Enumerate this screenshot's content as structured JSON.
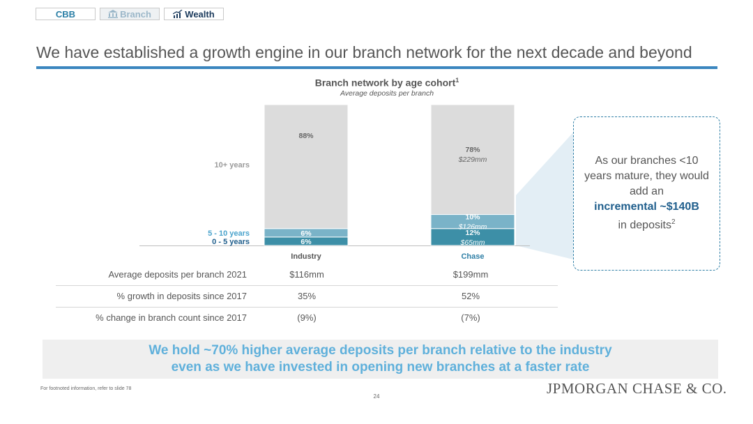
{
  "tabs": [
    {
      "label": "CBB",
      "icon": null
    },
    {
      "label": "Branch",
      "icon": "bank-icon"
    },
    {
      "label": "Wealth",
      "icon": "growth-chart-icon"
    }
  ],
  "title": "We have established a growth engine in our branch network for the next decade and beyond",
  "chart_data": {
    "type": "bar",
    "stacked": true,
    "title": "Branch network by age cohort",
    "title_superscript": "1",
    "subtitle": "Average deposits per branch",
    "categories": [
      "Industry",
      "Chase"
    ],
    "series": [
      {
        "name": "0 - 5 years",
        "color": "#3d8fa7",
        "text_color": "#1f5e8c",
        "values": [
          6,
          12
        ],
        "labels": [
          "6%",
          "12%"
        ],
        "sub_labels": [
          "",
          "$65mm"
        ]
      },
      {
        "name": "5 - 10 years",
        "color": "#7ab3c8",
        "text_color": "#4aa3cc",
        "values": [
          6,
          10
        ],
        "labels": [
          "6%",
          "10%"
        ],
        "sub_labels": [
          "",
          "$126mm"
        ]
      },
      {
        "name": "10+ years",
        "color": "#dcdcdc",
        "text_color": "#9a9a9a",
        "values": [
          88,
          78
        ],
        "labels": [
          "88%",
          "78%"
        ],
        "sub_labels": [
          "",
          "$229mm"
        ]
      }
    ],
    "ylim": [
      0,
      100
    ]
  },
  "callout": {
    "line1": "As our branches <10",
    "line2": "years mature, they would",
    "line3": "add an",
    "line4": "incremental ~$140B",
    "line5": "in deposits",
    "sup": "2"
  },
  "table": {
    "rows": [
      {
        "label": "Average deposits per branch 2021",
        "industry": "$116mm",
        "chase": "$199mm"
      },
      {
        "label": "% growth in deposits since 2017",
        "industry": "35%",
        "chase": "52%"
      },
      {
        "label": "% change in branch count since 2017",
        "industry": "(9%)",
        "chase": "(7%)"
      }
    ]
  },
  "banner": {
    "line1": "We hold ~70% higher average deposits per branch relative to the industry",
    "line2": "even as we have invested in opening new branches at a faster rate"
  },
  "footnote": "For footnoted information, refer to slide 78",
  "page_number": "24",
  "logo": "JPMORGAN CHASE & CO."
}
